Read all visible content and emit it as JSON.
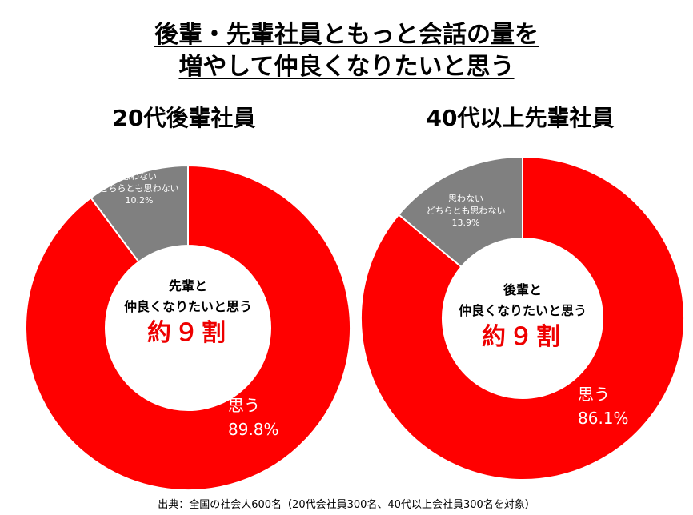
{
  "title": {
    "line1": "後輩・先輩社員ともっと会話の量を",
    "line2": "増やして仲良くなりたいと思う"
  },
  "colors": {
    "yes": "#ff0000",
    "no": "#808080"
  },
  "chart_data": [
    {
      "type": "pie",
      "title": "20代後輩社員",
      "center_text": [
        "先輩と",
        "仲良くなりたいと思う",
        "約９割"
      ],
      "categories": [
        "思う",
        "思わない どちらとも思わない"
      ],
      "values": [
        89.8,
        10.2
      ],
      "labels": {
        "yes": "思う",
        "yes_value": "89.8%",
        "no1": "思わない",
        "no2": "どちらとも思わない",
        "no_value": "10.2%"
      }
    },
    {
      "type": "pie",
      "title": "40代以上先輩社員",
      "center_text": [
        "後輩と",
        "仲良くなりたいと思う",
        "約９割"
      ],
      "categories": [
        "思う",
        "思わない どちらとも思わない"
      ],
      "values": [
        86.1,
        13.9
      ],
      "labels": {
        "yes": "思う",
        "yes_value": "86.1%",
        "no1": "思わない",
        "no2": "どちらとも思わない",
        "no_value": "13.9%"
      }
    }
  ],
  "source": "出典：全国の社会人600名（20代会社員300名、40代以上会社員300名を対象）"
}
